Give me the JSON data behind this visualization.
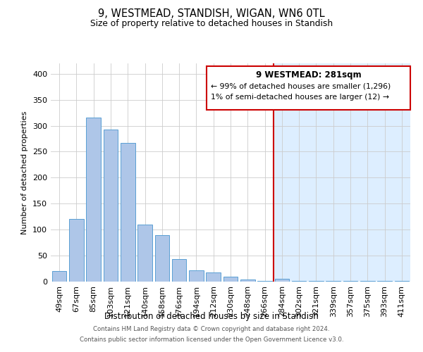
{
  "title": "9, WESTMEAD, STANDISH, WIGAN, WN6 0TL",
  "subtitle": "Size of property relative to detached houses in Standish",
  "xlabel": "Distribution of detached houses by size in Standish",
  "ylabel": "Number of detached properties",
  "bar_labels": [
    "49sqm",
    "67sqm",
    "85sqm",
    "103sqm",
    "121sqm",
    "140sqm",
    "158sqm",
    "176sqm",
    "194sqm",
    "212sqm",
    "230sqm",
    "248sqm",
    "266sqm",
    "284sqm",
    "302sqm",
    "321sqm",
    "339sqm",
    "357sqm",
    "375sqm",
    "393sqm",
    "411sqm"
  ],
  "bar_values": [
    20,
    120,
    315,
    293,
    267,
    110,
    90,
    44,
    22,
    17,
    9,
    4,
    1,
    6,
    2,
    1,
    1,
    1,
    1,
    1,
    2
  ],
  "bar_color": "#aec6e8",
  "bar_edge_color": "#5a9fd4",
  "highlight_index": 13,
  "bg_right_color": "#ddeeff",
  "bg_left_color": "#ffffff",
  "vline_color": "#cc0000",
  "ylim": [
    0,
    420
  ],
  "yticks": [
    0,
    50,
    100,
    150,
    200,
    250,
    300,
    350,
    400
  ],
  "annotation_title": "9 WESTMEAD: 281sqm",
  "annotation_line1": "← 99% of detached houses are smaller (1,296)",
  "annotation_line2": "1% of semi-detached houses are larger (12) →",
  "annotation_box_color": "#ffffff",
  "annotation_border_color": "#cc0000",
  "footer_line1": "Contains HM Land Registry data © Crown copyright and database right 2024.",
  "footer_line2": "Contains public sector information licensed under the Open Government Licence v3.0."
}
